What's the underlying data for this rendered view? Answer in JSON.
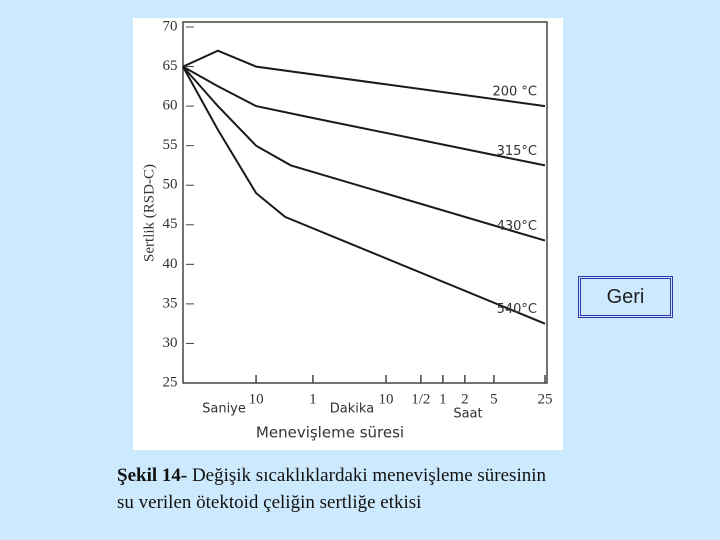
{
  "chart_data": {
    "type": "line",
    "ylabel": "Sertlik (RSD-C)",
    "xlabel": "Menevişleme süresi",
    "annotations": [
      "Saniye",
      "Dakika",
      "Saat"
    ],
    "log_x": true,
    "xlim": [
      1,
      90000
    ],
    "xticks": [
      10,
      {
        "value": 60,
        "label": "1"
      },
      {
        "value": 600,
        "label": "10"
      },
      {
        "value": 1800,
        "label": "1/2"
      },
      {
        "value": 3600,
        "label": "1"
      },
      {
        "value": 7200,
        "label": "2"
      },
      {
        "value": 18000,
        "label": "5"
      },
      {
        "value": 90000,
        "label": "25"
      }
    ],
    "ylim": [
      25,
      70
    ],
    "yticks": [
      25,
      30,
      35,
      40,
      45,
      50,
      55,
      60,
      65,
      70
    ],
    "series": [
      {
        "name": "200 °C",
        "color": "#1a1a1a",
        "x": [
          1,
          3,
          10,
          90000
        ],
        "values": [
          65,
          67,
          65,
          60
        ]
      },
      {
        "name": "315°C",
        "color": "#1a1a1a",
        "x": [
          1,
          3,
          10,
          60,
          90000
        ],
        "values": [
          65,
          62.5,
          60,
          58.5,
          52.5
        ]
      },
      {
        "name": "430°C",
        "color": "#1a1a1a",
        "x": [
          1,
          3,
          10,
          30,
          90000
        ],
        "values": [
          65,
          60,
          55,
          52.5,
          43
        ]
      },
      {
        "name": "540°C",
        "color": "#1a1a1a",
        "x": [
          1,
          3,
          10,
          25,
          90000
        ],
        "values": [
          65,
          57,
          49,
          46,
          32.5
        ]
      }
    ]
  },
  "button": {
    "label": "Geri"
  },
  "caption": {
    "label": "Şekil 14-",
    "lines": [
      "Değişik sıcaklıklardaki menevişleme süresinin",
      "su verilen ötektoid çeliğin sertliğe etkisi"
    ]
  }
}
